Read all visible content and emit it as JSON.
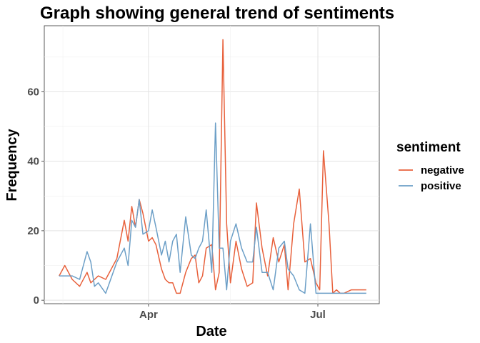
{
  "chart_data": {
    "type": "line",
    "title": "Graph showing general trend of sentiments",
    "xlabel": "Date",
    "ylabel": "Frequency",
    "x_ticks": [
      "Apr",
      "Jul"
    ],
    "y_ticks": [
      0,
      20,
      40,
      60
    ],
    "ylim": [
      -1,
      79
    ],
    "xlim": [
      "2020-02-05",
      "2020-08-03"
    ],
    "grid": true,
    "legend": {
      "title": "sentiment",
      "placement": "right"
    },
    "x": [
      "2020-02-13",
      "2020-02-16",
      "2020-02-20",
      "2020-02-24",
      "2020-02-28",
      "2020-03-01",
      "2020-03-03",
      "2020-03-05",
      "2020-03-09",
      "2020-03-15",
      "2020-03-19",
      "2020-03-21",
      "2020-03-23",
      "2020-03-25",
      "2020-03-27",
      "2020-03-29",
      "2020-04-01",
      "2020-04-03",
      "2020-04-05",
      "2020-04-08",
      "2020-04-10",
      "2020-04-12",
      "2020-04-14",
      "2020-04-16",
      "2020-04-18",
      "2020-04-21",
      "2020-04-24",
      "2020-04-26",
      "2020-04-28",
      "2020-04-30",
      "2020-05-02",
      "2020-05-05",
      "2020-05-07",
      "2020-05-09",
      "2020-05-11",
      "2020-05-13",
      "2020-05-15",
      "2020-05-18",
      "2020-05-21",
      "2020-05-24",
      "2020-05-27",
      "2020-05-29",
      "2020-06-01",
      "2020-06-04",
      "2020-06-07",
      "2020-06-10",
      "2020-06-13",
      "2020-06-15",
      "2020-06-18",
      "2020-06-21",
      "2020-06-24",
      "2020-06-27",
      "2020-06-30",
      "2020-07-02",
      "2020-07-04",
      "2020-07-07",
      "2020-07-09",
      "2020-07-11",
      "2020-07-13",
      "2020-07-15",
      "2020-07-19",
      "2020-07-21",
      "2020-07-23",
      "2020-07-25",
      "2020-07-27"
    ],
    "series": [
      {
        "name": "negative",
        "color": "#e8613c",
        "values": [
          7,
          10,
          6,
          4,
          8,
          5,
          6,
          7,
          6,
          12,
          23,
          17,
          27,
          21,
          29,
          25,
          17,
          18,
          16,
          9,
          6,
          5,
          5,
          2,
          2,
          8,
          12,
          13,
          5,
          7,
          15,
          16,
          3,
          8,
          75,
          22,
          5,
          17,
          9,
          4,
          5,
          28,
          15,
          7,
          18,
          11,
          16,
          3,
          22,
          32,
          11,
          12,
          5,
          3,
          43,
          22,
          2,
          3,
          2,
          2,
          3,
          3,
          3,
          3,
          3
        ]
      },
      {
        "name": "positive",
        "color": "#6c9fc7",
        "values": [
          7,
          7,
          7,
          6,
          14,
          11,
          4,
          5,
          2,
          11,
          15,
          10,
          23,
          21,
          29,
          19,
          20,
          26,
          21,
          13,
          17,
          11,
          17,
          19,
          8,
          24,
          13,
          12,
          15,
          17,
          26,
          8,
          51,
          15,
          15,
          3,
          17,
          22,
          15,
          11,
          11,
          21,
          8,
          8,
          3,
          15,
          17,
          9,
          7,
          3,
          2,
          22,
          2,
          2,
          2,
          2,
          2,
          2,
          2,
          2,
          2,
          2,
          2,
          2,
          2
        ]
      }
    ]
  }
}
